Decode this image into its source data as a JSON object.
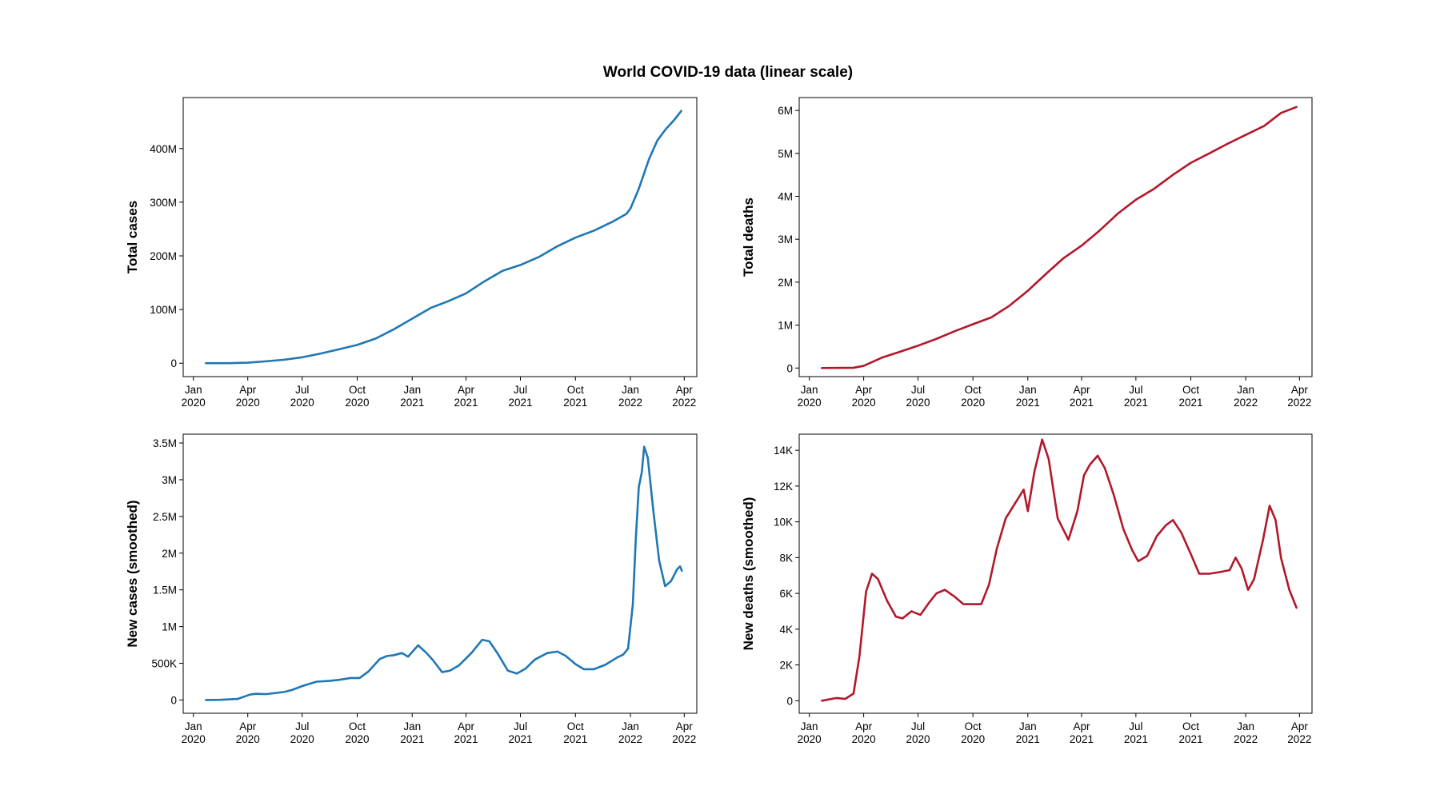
{
  "figure": {
    "title": "World COVID-19 data (linear scale)"
  },
  "chart_data": [
    {
      "type": "line",
      "panel": "top-left",
      "xlabel": "",
      "ylabel": "Total cases",
      "color": "#1f77b4",
      "xlim": [
        "2019-12-15",
        "2022-04-22"
      ],
      "ylim": [
        -25000000,
        495000000
      ],
      "x_ticks": [
        {
          "date": "2020-01-01",
          "label": [
            "Jan",
            "2020"
          ]
        },
        {
          "date": "2020-04-01",
          "label": [
            "Apr",
            "2020"
          ]
        },
        {
          "date": "2020-07-01",
          "label": [
            "Jul",
            "2020"
          ]
        },
        {
          "date": "2020-10-01",
          "label": [
            "Oct",
            "2020"
          ]
        },
        {
          "date": "2021-01-01",
          "label": [
            "Jan",
            "2021"
          ]
        },
        {
          "date": "2021-04-01",
          "label": [
            "Apr",
            "2021"
          ]
        },
        {
          "date": "2021-07-01",
          "label": [
            "Jul",
            "2021"
          ]
        },
        {
          "date": "2021-10-01",
          "label": [
            "Oct",
            "2021"
          ]
        },
        {
          "date": "2022-01-01",
          "label": [
            "Jan",
            "2022"
          ]
        },
        {
          "date": "2022-04-01",
          "label": [
            "Apr",
            "2022"
          ]
        }
      ],
      "y_ticks": [
        {
          "value": 0,
          "label": "0"
        },
        {
          "value": 100000000,
          "label": "100M"
        },
        {
          "value": 200000000,
          "label": "200M"
        },
        {
          "value": 300000000,
          "label": "300M"
        },
        {
          "value": 400000000,
          "label": "400M"
        }
      ],
      "points": [
        [
          "2020-01-22",
          0
        ],
        [
          "2020-03-01",
          100000
        ],
        [
          "2020-04-01",
          1000000
        ],
        [
          "2020-05-01",
          3500000
        ],
        [
          "2020-06-01",
          6500000
        ],
        [
          "2020-07-01",
          11000000
        ],
        [
          "2020-08-01",
          18000000
        ],
        [
          "2020-09-01",
          26000000
        ],
        [
          "2020-10-01",
          34000000
        ],
        [
          "2020-11-01",
          46000000
        ],
        [
          "2020-12-01",
          63000000
        ],
        [
          "2021-01-01",
          83000000
        ],
        [
          "2021-02-01",
          103000000
        ],
        [
          "2021-03-01",
          115000000
        ],
        [
          "2021-04-01",
          130000000
        ],
        [
          "2021-05-01",
          152000000
        ],
        [
          "2021-06-01",
          172000000
        ],
        [
          "2021-07-01",
          183000000
        ],
        [
          "2021-08-01",
          198000000
        ],
        [
          "2021-09-01",
          218000000
        ],
        [
          "2021-10-01",
          234000000
        ],
        [
          "2021-11-01",
          247000000
        ],
        [
          "2021-12-01",
          263000000
        ],
        [
          "2021-12-25",
          278000000
        ],
        [
          "2022-01-01",
          288000000
        ],
        [
          "2022-01-15",
          325000000
        ],
        [
          "2022-02-01",
          380000000
        ],
        [
          "2022-02-15",
          415000000
        ],
        [
          "2022-03-01",
          436000000
        ],
        [
          "2022-03-15",
          453000000
        ],
        [
          "2022-03-27",
          470000000
        ]
      ]
    },
    {
      "type": "line",
      "panel": "top-right",
      "xlabel": "",
      "ylabel": "Total deaths",
      "color": "#b2182b",
      "xlim": [
        "2019-12-15",
        "2022-04-22"
      ],
      "ylim": [
        -200000,
        6300000
      ],
      "x_ticks": [
        {
          "date": "2020-01-01",
          "label": [
            "Jan",
            "2020"
          ]
        },
        {
          "date": "2020-04-01",
          "label": [
            "Apr",
            "2020"
          ]
        },
        {
          "date": "2020-07-01",
          "label": [
            "Jul",
            "2020"
          ]
        },
        {
          "date": "2020-10-01",
          "label": [
            "Oct",
            "2020"
          ]
        },
        {
          "date": "2021-01-01",
          "label": [
            "Jan",
            "2021"
          ]
        },
        {
          "date": "2021-04-01",
          "label": [
            "Apr",
            "2021"
          ]
        },
        {
          "date": "2021-07-01",
          "label": [
            "Jul",
            "2021"
          ]
        },
        {
          "date": "2021-10-01",
          "label": [
            "Oct",
            "2021"
          ]
        },
        {
          "date": "2022-01-01",
          "label": [
            "Jan",
            "2022"
          ]
        },
        {
          "date": "2022-04-01",
          "label": [
            "Apr",
            "2022"
          ]
        }
      ],
      "y_ticks": [
        {
          "value": 0,
          "label": "0"
        },
        {
          "value": 1000000,
          "label": "1M"
        },
        {
          "value": 2000000,
          "label": "2M"
        },
        {
          "value": 3000000,
          "label": "3M"
        },
        {
          "value": 4000000,
          "label": "4M"
        },
        {
          "value": 5000000,
          "label": "5M"
        },
        {
          "value": 6000000,
          "label": "6M"
        }
      ],
      "points": [
        [
          "2020-01-22",
          0
        ],
        [
          "2020-03-15",
          6000
        ],
        [
          "2020-04-01",
          50000
        ],
        [
          "2020-05-01",
          240000
        ],
        [
          "2020-06-01",
          380000
        ],
        [
          "2020-07-01",
          520000
        ],
        [
          "2020-08-01",
          680000
        ],
        [
          "2020-09-01",
          860000
        ],
        [
          "2020-10-01",
          1020000
        ],
        [
          "2020-11-01",
          1180000
        ],
        [
          "2020-12-01",
          1450000
        ],
        [
          "2021-01-01",
          1800000
        ],
        [
          "2021-02-01",
          2200000
        ],
        [
          "2021-03-01",
          2550000
        ],
        [
          "2021-04-01",
          2850000
        ],
        [
          "2021-05-01",
          3200000
        ],
        [
          "2021-06-01",
          3600000
        ],
        [
          "2021-07-01",
          3920000
        ],
        [
          "2021-08-01",
          4180000
        ],
        [
          "2021-09-01",
          4500000
        ],
        [
          "2021-10-01",
          4780000
        ],
        [
          "2021-11-01",
          5000000
        ],
        [
          "2021-12-01",
          5220000
        ],
        [
          "2022-01-01",
          5430000
        ],
        [
          "2022-02-01",
          5640000
        ],
        [
          "2022-03-01",
          5940000
        ],
        [
          "2022-03-27",
          6080000
        ]
      ]
    },
    {
      "type": "line",
      "panel": "bottom-left",
      "xlabel": "",
      "ylabel": "New cases (smoothed)",
      "color": "#1f77b4",
      "xlim": [
        "2019-12-15",
        "2022-04-22"
      ],
      "ylim": [
        -180000,
        3620000
      ],
      "x_ticks": [
        {
          "date": "2020-01-01",
          "label": [
            "Jan",
            "2020"
          ]
        },
        {
          "date": "2020-04-01",
          "label": [
            "Apr",
            "2020"
          ]
        },
        {
          "date": "2020-07-01",
          "label": [
            "Jul",
            "2020"
          ]
        },
        {
          "date": "2020-10-01",
          "label": [
            "Oct",
            "2020"
          ]
        },
        {
          "date": "2021-01-01",
          "label": [
            "Jan",
            "2021"
          ]
        },
        {
          "date": "2021-04-01",
          "label": [
            "Apr",
            "2021"
          ]
        },
        {
          "date": "2021-07-01",
          "label": [
            "Jul",
            "2021"
          ]
        },
        {
          "date": "2021-10-01",
          "label": [
            "Oct",
            "2021"
          ]
        },
        {
          "date": "2022-01-01",
          "label": [
            "Jan",
            "2022"
          ]
        },
        {
          "date": "2022-04-01",
          "label": [
            "Apr",
            "2022"
          ]
        }
      ],
      "y_ticks": [
        {
          "value": 0,
          "label": "0"
        },
        {
          "value": 500000,
          "label": "500K"
        },
        {
          "value": 1000000,
          "label": "1M"
        },
        {
          "value": 1500000,
          "label": "1.5M"
        },
        {
          "value": 2000000,
          "label": "2M"
        },
        {
          "value": 2500000,
          "label": "2.5M"
        },
        {
          "value": 3000000,
          "label": "3M"
        },
        {
          "value": 3500000,
          "label": "3.5M"
        }
      ],
      "points": [
        [
          "2020-01-22",
          0
        ],
        [
          "2020-02-15",
          3000
        ],
        [
          "2020-03-15",
          15000
        ],
        [
          "2020-04-05",
          75000
        ],
        [
          "2020-04-15",
          85000
        ],
        [
          "2020-05-01",
          80000
        ],
        [
          "2020-06-01",
          110000
        ],
        [
          "2020-06-15",
          140000
        ],
        [
          "2020-07-01",
          190000
        ],
        [
          "2020-07-25",
          250000
        ],
        [
          "2020-08-15",
          260000
        ],
        [
          "2020-09-01",
          275000
        ],
        [
          "2020-09-20",
          300000
        ],
        [
          "2020-10-05",
          300000
        ],
        [
          "2020-10-20",
          390000
        ],
        [
          "2020-11-08",
          560000
        ],
        [
          "2020-11-20",
          600000
        ],
        [
          "2020-12-01",
          610000
        ],
        [
          "2020-12-15",
          640000
        ],
        [
          "2020-12-25",
          590000
        ],
        [
          "2021-01-11",
          745000
        ],
        [
          "2021-01-25",
          640000
        ],
        [
          "2021-02-05",
          540000
        ],
        [
          "2021-02-20",
          380000
        ],
        [
          "2021-03-05",
          400000
        ],
        [
          "2021-03-20",
          470000
        ],
        [
          "2021-04-10",
          640000
        ],
        [
          "2021-04-28",
          820000
        ],
        [
          "2021-05-10",
          800000
        ],
        [
          "2021-05-25",
          620000
        ],
        [
          "2021-06-10",
          400000
        ],
        [
          "2021-06-25",
          360000
        ],
        [
          "2021-07-10",
          430000
        ],
        [
          "2021-07-25",
          550000
        ],
        [
          "2021-08-15",
          640000
        ],
        [
          "2021-09-01",
          660000
        ],
        [
          "2021-09-15",
          600000
        ],
        [
          "2021-10-01",
          490000
        ],
        [
          "2021-10-15",
          420000
        ],
        [
          "2021-11-01",
          420000
        ],
        [
          "2021-11-20",
          480000
        ],
        [
          "2021-12-10",
          580000
        ],
        [
          "2021-12-20",
          620000
        ],
        [
          "2021-12-28",
          700000
        ],
        [
          "2022-01-05",
          1300000
        ],
        [
          "2022-01-10",
          2200000
        ],
        [
          "2022-01-15",
          2900000
        ],
        [
          "2022-01-20",
          3100000
        ],
        [
          "2022-01-24",
          3450000
        ],
        [
          "2022-01-30",
          3300000
        ],
        [
          "2022-02-08",
          2600000
        ],
        [
          "2022-02-18",
          1900000
        ],
        [
          "2022-02-28",
          1550000
        ],
        [
          "2022-03-10",
          1620000
        ],
        [
          "2022-03-20",
          1780000
        ],
        [
          "2022-03-25",
          1820000
        ],
        [
          "2022-03-28",
          1760000
        ]
      ]
    },
    {
      "type": "line",
      "panel": "bottom-right",
      "xlabel": "",
      "ylabel": "New deaths (smoothed)",
      "color": "#b2182b",
      "xlim": [
        "2019-12-15",
        "2022-04-22"
      ],
      "ylim": [
        -700,
        14900
      ],
      "x_ticks": [
        {
          "date": "2020-01-01",
          "label": [
            "Jan",
            "2020"
          ]
        },
        {
          "date": "2020-04-01",
          "label": [
            "Apr",
            "2020"
          ]
        },
        {
          "date": "2020-07-01",
          "label": [
            "Jul",
            "2020"
          ]
        },
        {
          "date": "2020-10-01",
          "label": [
            "Oct",
            "2020"
          ]
        },
        {
          "date": "2021-01-01",
          "label": [
            "Jan",
            "2021"
          ]
        },
        {
          "date": "2021-04-01",
          "label": [
            "Apr",
            "2021"
          ]
        },
        {
          "date": "2021-07-01",
          "label": [
            "Jul",
            "2021"
          ]
        },
        {
          "date": "2021-10-01",
          "label": [
            "Oct",
            "2021"
          ]
        },
        {
          "date": "2022-01-01",
          "label": [
            "Jan",
            "2022"
          ]
        },
        {
          "date": "2022-04-01",
          "label": [
            "Apr",
            "2022"
          ]
        }
      ],
      "y_ticks": [
        {
          "value": 0,
          "label": "0"
        },
        {
          "value": 2000,
          "label": "2K"
        },
        {
          "value": 4000,
          "label": "4K"
        },
        {
          "value": 6000,
          "label": "6K"
        },
        {
          "value": 8000,
          "label": "8K"
        },
        {
          "value": 10000,
          "label": "10K"
        },
        {
          "value": 12000,
          "label": "12K"
        },
        {
          "value": 14000,
          "label": "14K"
        }
      ],
      "points": [
        [
          "2020-01-22",
          0
        ],
        [
          "2020-02-15",
          150
        ],
        [
          "2020-03-01",
          100
        ],
        [
          "2020-03-15",
          400
        ],
        [
          "2020-03-25",
          2500
        ],
        [
          "2020-04-05",
          6100
        ],
        [
          "2020-04-15",
          7100
        ],
        [
          "2020-04-25",
          6800
        ],
        [
          "2020-05-10",
          5600
        ],
        [
          "2020-05-25",
          4700
        ],
        [
          "2020-06-05",
          4600
        ],
        [
          "2020-06-20",
          5000
        ],
        [
          "2020-07-05",
          4800
        ],
        [
          "2020-07-20",
          5500
        ],
        [
          "2020-08-01",
          6000
        ],
        [
          "2020-08-15",
          6200
        ],
        [
          "2020-09-01",
          5800
        ],
        [
          "2020-09-15",
          5400
        ],
        [
          "2020-10-01",
          5400
        ],
        [
          "2020-10-15",
          5400
        ],
        [
          "2020-10-28",
          6500
        ],
        [
          "2020-11-10",
          8500
        ],
        [
          "2020-11-25",
          10200
        ],
        [
          "2020-12-10",
          11000
        ],
        [
          "2020-12-25",
          11800
        ],
        [
          "2021-01-01",
          10600
        ],
        [
          "2021-01-12",
          12800
        ],
        [
          "2021-01-25",
          14600
        ],
        [
          "2021-02-05",
          13500
        ],
        [
          "2021-02-20",
          10200
        ],
        [
          "2021-03-10",
          9000
        ],
        [
          "2021-03-25",
          10600
        ],
        [
          "2021-04-05",
          12600
        ],
        [
          "2021-04-15",
          13200
        ],
        [
          "2021-04-28",
          13700
        ],
        [
          "2021-05-10",
          13000
        ],
        [
          "2021-05-25",
          11500
        ],
        [
          "2021-06-10",
          9600
        ],
        [
          "2021-06-25",
          8400
        ],
        [
          "2021-07-05",
          7800
        ],
        [
          "2021-07-20",
          8100
        ],
        [
          "2021-08-05",
          9200
        ],
        [
          "2021-08-20",
          9800
        ],
        [
          "2021-09-01",
          10100
        ],
        [
          "2021-09-15",
          9400
        ],
        [
          "2021-10-01",
          8200
        ],
        [
          "2021-10-15",
          7100
        ],
        [
          "2021-11-01",
          7100
        ],
        [
          "2021-11-20",
          7200
        ],
        [
          "2021-12-05",
          7300
        ],
        [
          "2021-12-15",
          8000
        ],
        [
          "2021-12-25",
          7400
        ],
        [
          "2022-01-05",
          6200
        ],
        [
          "2022-01-15",
          6800
        ],
        [
          "2022-01-30",
          9000
        ],
        [
          "2022-02-10",
          10900
        ],
        [
          "2022-02-20",
          10100
        ],
        [
          "2022-03-01",
          8000
        ],
        [
          "2022-03-15",
          6200
        ],
        [
          "2022-03-27",
          5200
        ]
      ]
    }
  ]
}
